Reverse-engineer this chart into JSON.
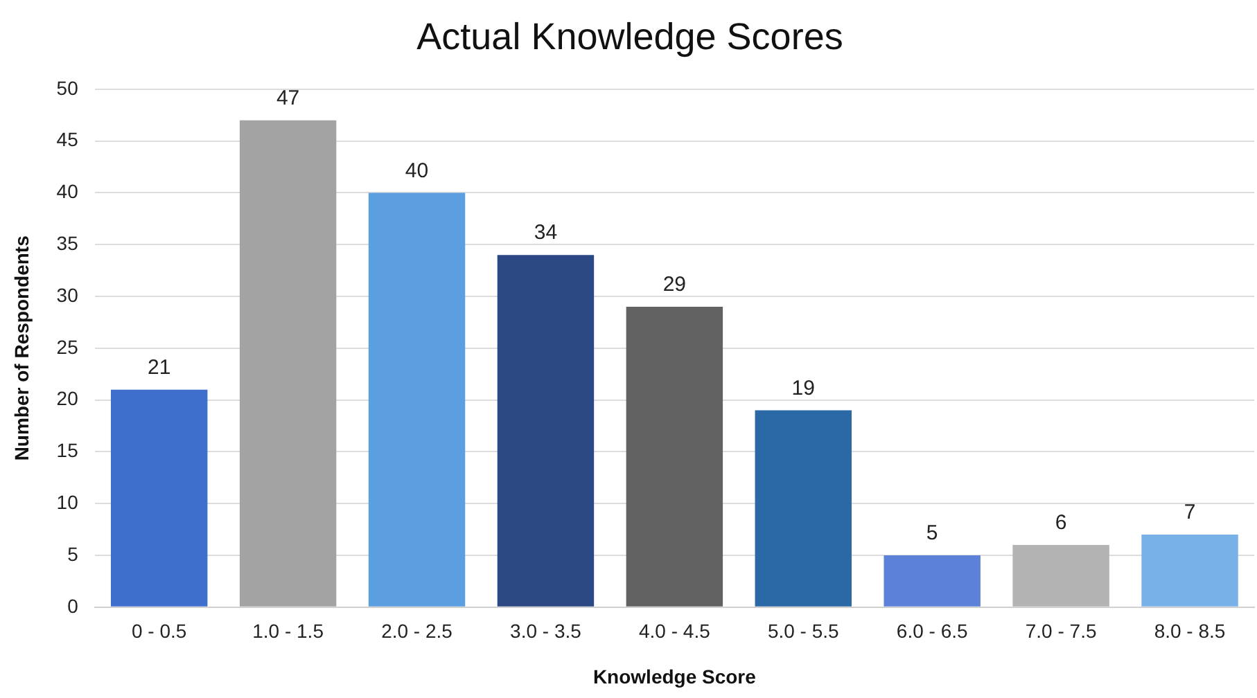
{
  "chart_data": {
    "type": "bar",
    "title": "Actual Knowledge Scores",
    "xlabel": "Knowledge Score",
    "ylabel": "Number of Respondents",
    "categories": [
      "0 - 0.5",
      "1.0 - 1.5",
      "2.0 - 2.5",
      "3.0 - 3.5",
      "4.0 - 4.5",
      "5.0 - 5.5",
      "6.0 - 6.5",
      "7.0 - 7.5",
      "8.0 - 8.5"
    ],
    "values": [
      21,
      47,
      40,
      34,
      29,
      19,
      5,
      6,
      7
    ],
    "colors": [
      "#3f6fcc",
      "#a3a3a3",
      "#5b9fe0",
      "#2b4784",
      "#626262",
      "#2a68a6",
      "#5b82d8",
      "#b3b3b3",
      "#78b0e8"
    ],
    "ylim": [
      0,
      50
    ],
    "yticks": [
      0,
      5,
      10,
      15,
      20,
      25,
      30,
      35,
      40,
      45,
      50
    ],
    "grid": "y",
    "data_labels": true
  }
}
